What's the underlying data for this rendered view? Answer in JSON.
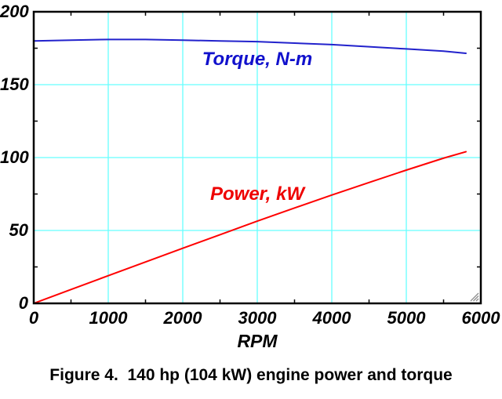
{
  "figure": {
    "caption": "Figure 4.  140 hp (104 kW) engine power and torque"
  },
  "icons": {
    "resize_grip": "resize-grip-icon"
  },
  "chart_data": {
    "type": "line",
    "title": "",
    "xlabel": "RPM",
    "ylabel": "",
    "xlim": [
      0,
      6000
    ],
    "ylim": [
      0,
      200
    ],
    "x_major_ticks": [
      0,
      1000,
      2000,
      3000,
      4000,
      5000,
      6000
    ],
    "x_minor_ticks": [
      500,
      1500,
      2500,
      3500,
      4500,
      5500
    ],
    "y_major_ticks": [
      0,
      50,
      100,
      150,
      200
    ],
    "y_minor_ticks": [
      25,
      75,
      125,
      175
    ],
    "grid": true,
    "legend_position": "inline-annotations",
    "colors": {
      "grid": "#66FFFF",
      "axis": "#000000",
      "background": "#FFFFFF",
      "grip": "#8C8C8C"
    },
    "series": [
      {
        "name": "Torque, N-m",
        "color": "#2222CC",
        "label_color": "#1111CC",
        "annotation_xy": [
          3000,
          167
        ],
        "x": [
          0,
          500,
          1000,
          1500,
          2000,
          2500,
          3000,
          3500,
          4000,
          4500,
          5000,
          5500,
          5800
        ],
        "values": [
          180,
          180.5,
          181,
          181,
          180.5,
          180,
          179.5,
          178.5,
          177.5,
          176,
          174.5,
          173,
          171.5
        ]
      },
      {
        "name": "Power, kW",
        "color": "#FF0000",
        "label_color": "#EE0000",
        "annotation_xy": [
          3000,
          75
        ],
        "x": [
          0,
          500,
          1000,
          1500,
          2000,
          2500,
          3000,
          3500,
          4000,
          4500,
          5000,
          5500,
          5800
        ],
        "values": [
          0,
          9.5,
          19,
          28.4,
          37.8,
          47.1,
          56.4,
          65.4,
          74.3,
          82.9,
          91.4,
          99.6,
          104
        ]
      }
    ]
  }
}
